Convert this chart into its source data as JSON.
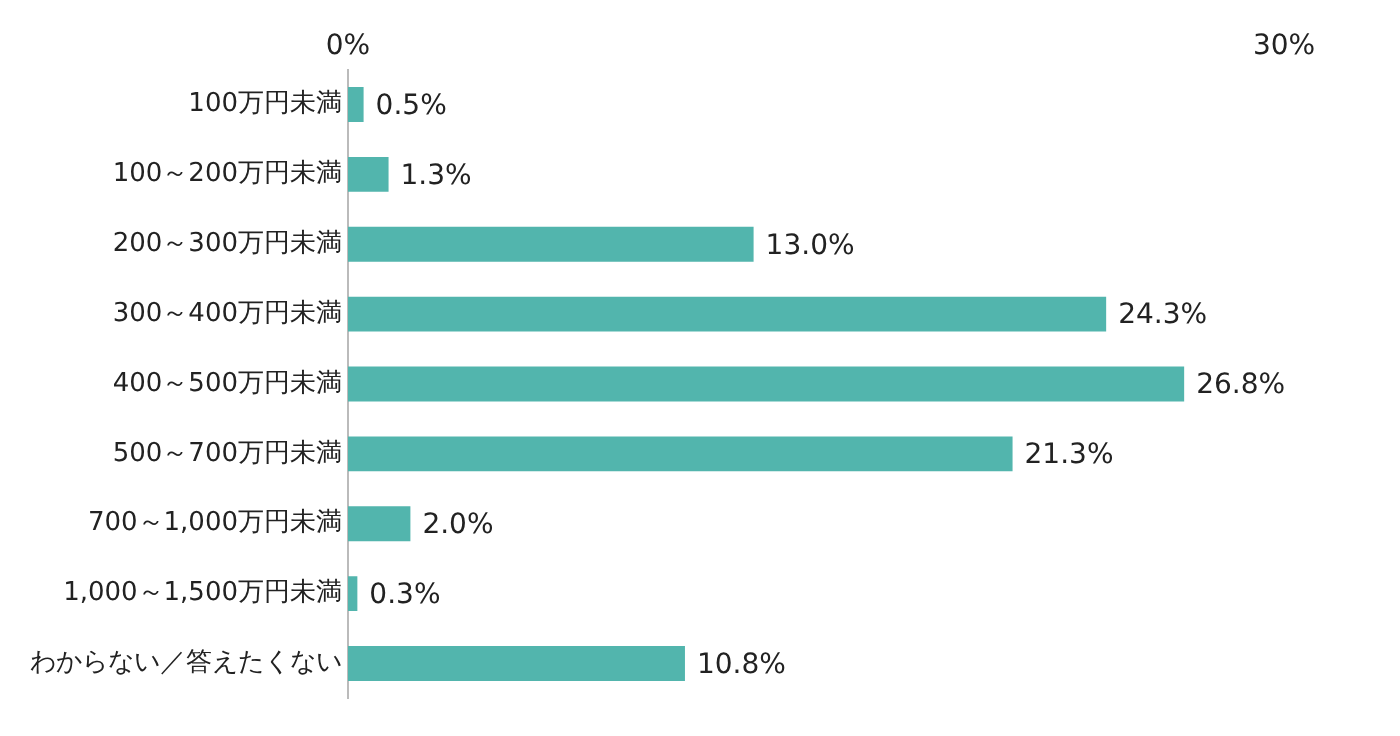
{
  "chart_data": {
    "type": "bar",
    "orientation": "horizontal",
    "categories": [
      "100万円未満",
      "100～200万円未満",
      "200～300万円未満",
      "300～400万円未満",
      "400～500万円未満",
      "500～700万円未満",
      "700～1,000万円未満",
      "1,000～1,500万円未満",
      "わからない／答えたくない"
    ],
    "values": [
      0.5,
      1.3,
      13.0,
      24.3,
      26.8,
      21.3,
      2.0,
      0.3,
      10.8
    ],
    "value_labels": [
      "0.5%",
      "1.3%",
      "13.0%",
      "24.3%",
      "26.8%",
      "21.3%",
      "2.0%",
      "0.3%",
      "10.8%"
    ],
    "color": "#52b5ad",
    "xlim": [
      0,
      30
    ],
    "xticks": [
      {
        "value": 0,
        "label": "0%"
      },
      {
        "value": 30,
        "label": "30%"
      }
    ],
    "grid": false,
    "legend": false
  }
}
